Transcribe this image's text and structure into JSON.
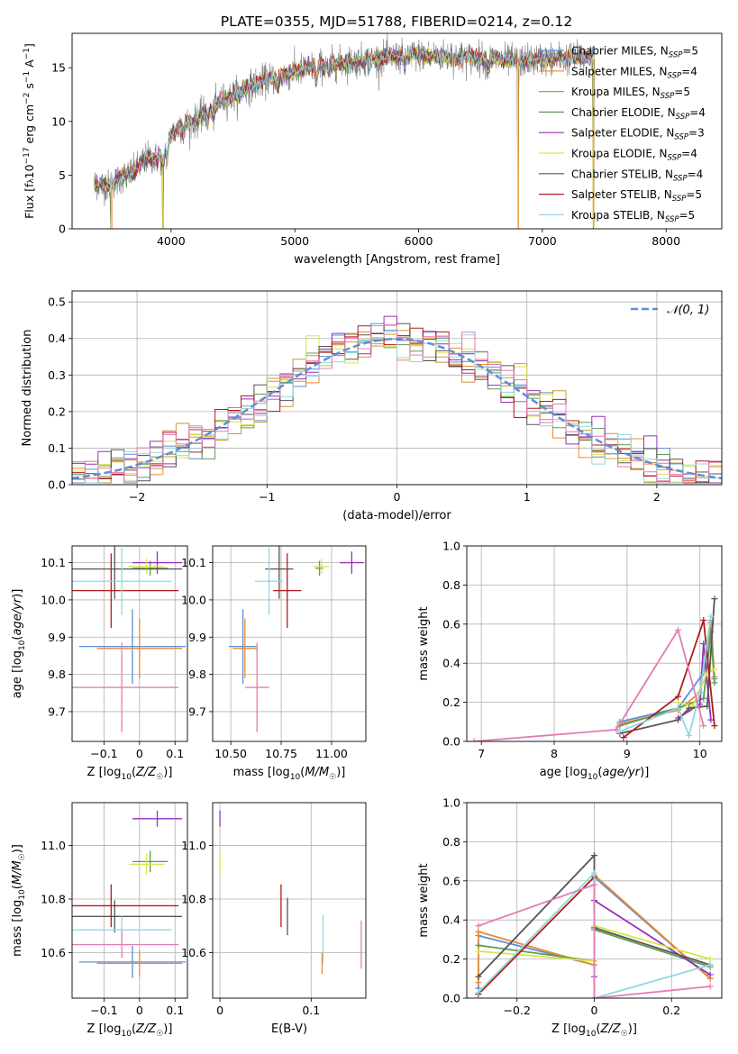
{
  "figure_title": "PLATE=0355, MJD=51788, FIBERID=0214, z=0.12",
  "colors": {
    "Chabrier MILES": "#5b8fd6",
    "Salpeter MILES": "#ee8a32",
    "Kroupa MILES": "#c7953a",
    "Chabrier ELODIE": "#5f9a52",
    "Salpeter ELODIE": "#9a2fbf",
    "Kroupa ELODIE": "#d9e54a",
    "Chabrier STELIB": "#555555",
    "Salpeter STELIB": "#b01c1c",
    "Kroupa STELIB": "#8fd8df",
    "pink": "#e47cb5",
    "gaussian": "#5b8fd6"
  },
  "chart_data": [
    {
      "id": "spectrum",
      "type": "line",
      "xlabel": "wavelength [Angstrom, rest frame]",
      "ylabel": "Flux [fλ10⁻¹⁷ erg cm⁻² s⁻¹ A⁻¹]",
      "xlim": [
        3200,
        8450
      ],
      "ylim": [
        0,
        18.2
      ],
      "xticks": [
        4000,
        5000,
        6000,
        7000,
        8000
      ],
      "yticks": [
        0,
        5,
        10,
        15
      ],
      "grid": false,
      "legend_position": "top-right",
      "continuum": {
        "x": [
          3400,
          3500,
          3600,
          3700,
          3800,
          3900,
          4000,
          4100,
          4200,
          4300,
          4400,
          4500,
          4700,
          5000,
          5200,
          5500,
          5800,
          6000,
          6300,
          6600,
          6800,
          7000,
          7200,
          7400
        ],
        "y": [
          4.2,
          4.0,
          4.8,
          5.3,
          6.6,
          6.5,
          8.8,
          9.8,
          10.0,
          11.1,
          11.9,
          12.4,
          13.6,
          14.6,
          15.2,
          15.6,
          16.0,
          16.2,
          16.0,
          15.8,
          15.6,
          15.8,
          15.9,
          16.0
        ]
      },
      "data_extent": [
        3380,
        7420
      ],
      "model_dips": [
        {
          "x": 3515,
          "depth": 4.2
        },
        {
          "x": 3930,
          "depth": 6.4
        },
        {
          "x": 6800,
          "depth": 15.6
        },
        {
          "x": 7410,
          "depth": 15.8
        }
      ],
      "series": [
        {
          "name": "Chabrier MILES, N$_{SSP}$=5",
          "label": "Chabrier MILES, N",
          "nssp": "=5",
          "color_key": "Chabrier MILES"
        },
        {
          "name": "Salpeter MILES, N$_{SSP}$=4",
          "label": "Salpeter MILES, N",
          "nssp": "=4",
          "color_key": "Salpeter MILES"
        },
        {
          "name": "Kroupa MILES, N$_{SSP}$=5",
          "label": "Kroupa MILES, N",
          "nssp": "=5",
          "color_key": "Kroupa MILES"
        },
        {
          "name": "Chabrier ELODIE, N$_{SSP}$=4",
          "label": "Chabrier ELODIE, N",
          "nssp": "=4",
          "color_key": "Chabrier ELODIE"
        },
        {
          "name": "Salpeter ELODIE, N$_{SSP}$=3",
          "label": "Salpeter ELODIE, N",
          "nssp": "=3",
          "color_key": "Salpeter ELODIE"
        },
        {
          "name": "Kroupa ELODIE, N$_{SSP}$=4",
          "label": "Kroupa ELODIE, N",
          "nssp": "=4",
          "color_key": "Kroupa ELODIE"
        },
        {
          "name": "Chabrier STELIB, N$_{SSP}$=4",
          "label": "Chabrier STELIB, N",
          "nssp": "=4",
          "color_key": "Chabrier STELIB"
        },
        {
          "name": "Salpeter STELIB, N$_{SSP}$=5",
          "label": "Salpeter STELIB, N",
          "nssp": "=5",
          "color_key": "Salpeter STELIB"
        },
        {
          "name": "Kroupa STELIB, N$_{SSP}$=5",
          "label": "Kroupa STELIB, N",
          "nssp": "=5",
          "color_key": "Kroupa STELIB"
        }
      ]
    },
    {
      "id": "residuals",
      "type": "line",
      "xlabel": "(data-model)/error",
      "ylabel": "Normed distribution",
      "xlim": [
        -2.5,
        2.5
      ],
      "ylim": [
        0,
        0.53
      ],
      "xticks": [
        -2,
        -1,
        0,
        1,
        2
      ],
      "yticks": [
        0.0,
        0.1,
        0.2,
        0.3,
        0.4,
        0.5
      ],
      "grid": true,
      "legend_position": "top-right",
      "legend_label": "𝒩(0, 1)",
      "bin_width": 0.1,
      "series_colors": [
        "Chabrier MILES",
        "Salpeter MILES",
        "Kroupa MILES",
        "Chabrier ELODIE",
        "Salpeter ELODIE",
        "Kroupa ELODIE",
        "Chabrier STELIB",
        "Salpeter STELIB",
        "Kroupa STELIB",
        "pink"
      ]
    },
    {
      "id": "age_vs_Z",
      "type": "scatter",
      "xlabel": "Z [log10(Z/Z☉)]",
      "ylabel": "age  [log10(age/yr)]",
      "xlim": [
        -0.19,
        0.135
      ],
      "ylim": [
        9.62,
        10.145
      ],
      "xticks": [
        -0.1,
        0.0,
        0.1
      ],
      "yticks": [
        9.7,
        9.8,
        9.9,
        10.0,
        10.1
      ],
      "grid": true,
      "points": [
        {
          "c": "Chabrier MILES",
          "x": -0.02,
          "xe": 0.15,
          "y": 9.875,
          "ye": 0.1
        },
        {
          "c": "Salpeter MILES",
          "x": 0.0,
          "xe": 0.12,
          "y": 9.87,
          "ye": 0.08
        },
        {
          "c": "Chabrier ELODIE",
          "x": 0.03,
          "xe": 0.05,
          "y": 10.085,
          "ye": 0.02
        },
        {
          "c": "Salpeter ELODIE",
          "x": 0.05,
          "xe": 0.07,
          "y": 10.1,
          "ye": 0.03
        },
        {
          "c": "Kroupa ELODIE",
          "x": 0.02,
          "xe": 0.05,
          "y": 10.09,
          "ye": 0.02
        },
        {
          "c": "Chabrier STELIB",
          "x": -0.07,
          "xe": 0.19,
          "y": 10.083,
          "ye": 0.08
        },
        {
          "c": "Salpeter STELIB",
          "x": -0.08,
          "xe": 0.19,
          "y": 10.025,
          "ye": 0.1
        },
        {
          "c": "Kroupa STELIB",
          "x": -0.05,
          "xe": 0.14,
          "y": 10.05,
          "ye": 0.09
        },
        {
          "c": "pink",
          "x": -0.05,
          "xe": 0.16,
          "y": 9.765,
          "ye": 0.12
        }
      ]
    },
    {
      "id": "age_vs_mass",
      "type": "scatter",
      "xlabel": "mass [log10(M/M☉)]",
      "ylabel": "",
      "xlim": [
        10.41,
        11.17
      ],
      "ylim": [
        9.62,
        10.145
      ],
      "xticks": [
        10.5,
        10.75,
        11.0
      ],
      "xticklabels": [
        "10.50",
        "10.75",
        "11.00"
      ],
      "yticks": [
        9.7,
        9.8,
        9.9,
        10.0,
        10.1
      ],
      "grid": true,
      "points": [
        {
          "c": "Chabrier MILES",
          "x": 10.56,
          "xe": 0.07,
          "y": 9.875,
          "ye": 0.1
        },
        {
          "c": "Salpeter MILES",
          "x": 10.57,
          "xe": 0.06,
          "y": 9.87,
          "ye": 0.08
        },
        {
          "c": "Chabrier ELODIE",
          "x": 10.94,
          "xe": 0.02,
          "y": 10.085,
          "ye": 0.02
        },
        {
          "c": "Salpeter ELODIE",
          "x": 11.1,
          "xe": 0.06,
          "y": 10.1,
          "ye": 0.03
        },
        {
          "c": "Kroupa ELODIE",
          "x": 10.95,
          "xe": 0.04,
          "y": 10.09,
          "ye": 0.02
        },
        {
          "c": "Chabrier STELIB",
          "x": 10.74,
          "xe": 0.07,
          "y": 10.083,
          "ye": 0.08
        },
        {
          "c": "Salpeter STELIB",
          "x": 10.78,
          "xe": 0.07,
          "y": 10.025,
          "ye": 0.1
        },
        {
          "c": "Kroupa STELIB",
          "x": 10.69,
          "xe": 0.07,
          "y": 10.05,
          "ye": 0.09
        },
        {
          "c": "pink",
          "x": 10.63,
          "xe": 0.06,
          "y": 9.765,
          "ye": 0.12
        }
      ]
    },
    {
      "id": "weight_vs_age",
      "type": "line",
      "xlabel": "age  [log10(age/yr)]",
      "ylabel": "mass weight",
      "xlim": [
        6.8,
        10.3
      ],
      "ylim": [
        0,
        1.0
      ],
      "xticks": [
        7,
        8,
        9,
        10
      ],
      "yticks": [
        0.0,
        0.2,
        0.4,
        0.6,
        0.8,
        1.0
      ],
      "grid": true,
      "series": [
        {
          "c": "Chabrier MILES",
          "x": [
            8.9,
            9.7,
            10.05,
            10.15,
            10.2
          ],
          "y": [
            0.1,
            0.17,
            0.35,
            0.61,
            0.32
          ]
        },
        {
          "c": "Salpeter MILES",
          "x": [
            8.9,
            9.7,
            10.0,
            10.15,
            10.2
          ],
          "y": [
            0.09,
            0.16,
            0.25,
            0.62,
            0.33
          ]
        },
        {
          "c": "Chabrier ELODIE",
          "x": [
            8.9,
            9.7,
            10.05,
            10.15,
            10.2
          ],
          "y": [
            0.08,
            0.17,
            0.22,
            0.56,
            0.3
          ]
        },
        {
          "c": "Salpeter ELODIE",
          "x": [
            9.7,
            10.0,
            10.05,
            10.15
          ],
          "y": [
            0.12,
            0.19,
            0.5,
            0.11
          ]
        },
        {
          "c": "Kroupa ELODIE",
          "x": [
            9.7,
            9.9,
            10.1,
            10.2
          ],
          "y": [
            0.2,
            0.18,
            0.35,
            0.37
          ]
        },
        {
          "c": "Chabrier STELIB",
          "x": [
            8.9,
            9.7,
            9.85,
            10.1,
            10.2
          ],
          "y": [
            0.04,
            0.11,
            0.17,
            0.18,
            0.73
          ]
        },
        {
          "c": "Salpeter STELIB",
          "x": [
            8.95,
            9.7,
            10.05,
            10.2
          ],
          "y": [
            0.02,
            0.23,
            0.62,
            0.08
          ]
        },
        {
          "c": "Kroupa STELIB",
          "x": [
            8.9,
            9.7,
            9.85,
            10.0,
            10.15
          ],
          "y": [
            0.05,
            0.17,
            0.03,
            0.25,
            0.64
          ]
        },
        {
          "c": "pink",
          "x": [
            6.9,
            8.85,
            9.7,
            10.05
          ],
          "y": [
            0.0,
            0.06,
            0.57,
            0.08
          ]
        }
      ]
    },
    {
      "id": "mass_vs_Z",
      "type": "scatter",
      "xlabel": "Z [log10(Z/Z☉)]",
      "ylabel": "mass [log10(M/M☉)]",
      "xlim": [
        -0.19,
        0.135
      ],
      "ylim": [
        10.43,
        11.16
      ],
      "xticks": [
        -0.1,
        0.0,
        0.1
      ],
      "yticks": [
        10.6,
        10.8,
        11.0
      ],
      "grid": true,
      "points": [
        {
          "c": "Chabrier MILES",
          "x": -0.02,
          "xe": 0.15,
          "y": 10.565,
          "ye": 0.06
        },
        {
          "c": "Salpeter MILES",
          "x": 0.0,
          "xe": 0.12,
          "y": 10.56,
          "ye": 0.05
        },
        {
          "c": "Chabrier ELODIE",
          "x": 0.03,
          "xe": 0.05,
          "y": 10.94,
          "ye": 0.04
        },
        {
          "c": "Salpeter ELODIE",
          "x": 0.05,
          "xe": 0.07,
          "y": 11.1,
          "ye": 0.03
        },
        {
          "c": "Kroupa ELODIE",
          "x": 0.02,
          "xe": 0.05,
          "y": 10.93,
          "ye": 0.04
        },
        {
          "c": "Chabrier STELIB",
          "x": -0.07,
          "xe": 0.19,
          "y": 10.735,
          "ye": 0.06
        },
        {
          "c": "Salpeter STELIB",
          "x": -0.08,
          "xe": 0.19,
          "y": 10.775,
          "ye": 0.08
        },
        {
          "c": "Kroupa STELIB",
          "x": -0.05,
          "xe": 0.14,
          "y": 10.685,
          "ye": 0.05
        },
        {
          "c": "pink",
          "x": -0.05,
          "xe": 0.16,
          "y": 10.63,
          "ye": 0.05
        }
      ]
    },
    {
      "id": "mass_vs_EBV",
      "type": "scatter",
      "xlabel": "E(B-V)",
      "ylabel": "",
      "xlim": [
        -0.008,
        0.16
      ],
      "ylim": [
        10.43,
        11.16
      ],
      "xticks": [
        0.0,
        0.1
      ],
      "yticks": [
        10.6,
        10.8,
        11.0
      ],
      "grid": true,
      "points": [
        {
          "c": "Salpeter ELODIE",
          "x": 0.0,
          "xe": 0,
          "y": 11.1,
          "ye": 0.03
        },
        {
          "c": "Kroupa ELODIE",
          "x": 0.0,
          "xe": 0,
          "y": 10.93,
          "ye": 0.04
        },
        {
          "c": "Salpeter STELIB",
          "x": 0.067,
          "xe": 0,
          "y": 10.775,
          "ye": 0.08
        },
        {
          "c": "Chabrier STELIB",
          "x": 0.074,
          "xe": 0,
          "y": 10.735,
          "ye": 0.07
        },
        {
          "c": "Kroupa STELIB",
          "x": 0.113,
          "xe": 0,
          "y": 10.65,
          "ye": 0.09
        },
        {
          "c": "Salpeter MILES",
          "x": 0.112,
          "xe": 0,
          "y": 10.56,
          "ye": 0.04
        },
        {
          "c": "pink",
          "x": 0.155,
          "xe": 0,
          "y": 10.63,
          "ye": 0.09
        }
      ]
    },
    {
      "id": "weight_vs_Z",
      "type": "line",
      "xlabel": "Z [log10(Z/Z☉)]",
      "ylabel": "mass weight",
      "xlim": [
        -0.33,
        0.33
      ],
      "ylim": [
        0,
        1.0
      ],
      "xticks": [
        -0.2,
        0.0,
        0.2
      ],
      "yticks": [
        0.0,
        0.2,
        0.4,
        0.6,
        0.8,
        1.0
      ],
      "grid": true,
      "series": [
        {
          "c": "Chabrier MILES",
          "x": [
            -0.3,
            -0.3,
            0.0,
            0.0,
            0.3
          ],
          "y": [
            0.05,
            0.32,
            0.17,
            0.62,
            0.1
          ]
        },
        {
          "c": "Salpeter MILES",
          "x": [
            -0.3,
            -0.3,
            0.0,
            0.0,
            0.3
          ],
          "y": [
            0.08,
            0.34,
            0.17,
            0.63,
            0.1
          ]
        },
        {
          "c": "Chabrier ELODIE",
          "x": [
            -0.3,
            0.0,
            0.0,
            0.3
          ],
          "y": [
            0.27,
            0.19,
            0.35,
            0.16
          ]
        },
        {
          "c": "Salpeter ELODIE",
          "x": [
            0.0,
            0.0,
            0.3
          ],
          "y": [
            0.11,
            0.5,
            0.12
          ]
        },
        {
          "c": "Kroupa ELODIE",
          "x": [
            -0.3,
            0.0,
            0.0,
            0.3
          ],
          "y": [
            0.24,
            0.19,
            0.37,
            0.2
          ]
        },
        {
          "c": "Chabrier STELIB",
          "x": [
            -0.3,
            0.0,
            0.0,
            0.3
          ],
          "y": [
            0.11,
            0.73,
            0.36,
            0.17
          ]
        },
        {
          "c": "Salpeter STELIB",
          "x": [
            -0.3,
            0.0,
            0.0
          ],
          "y": [
            0.02,
            0.62,
            0.0
          ]
        },
        {
          "c": "Kroupa STELIB",
          "x": [
            -0.3,
            0.0,
            0.0,
            0.3
          ],
          "y": [
            0.03,
            0.64,
            0.0,
            0.17
          ]
        },
        {
          "c": "pink",
          "x": [
            -0.3,
            0.0,
            0.0,
            0.3
          ],
          "y": [
            0.37,
            0.58,
            0.0,
            0.06
          ]
        }
      ]
    }
  ]
}
